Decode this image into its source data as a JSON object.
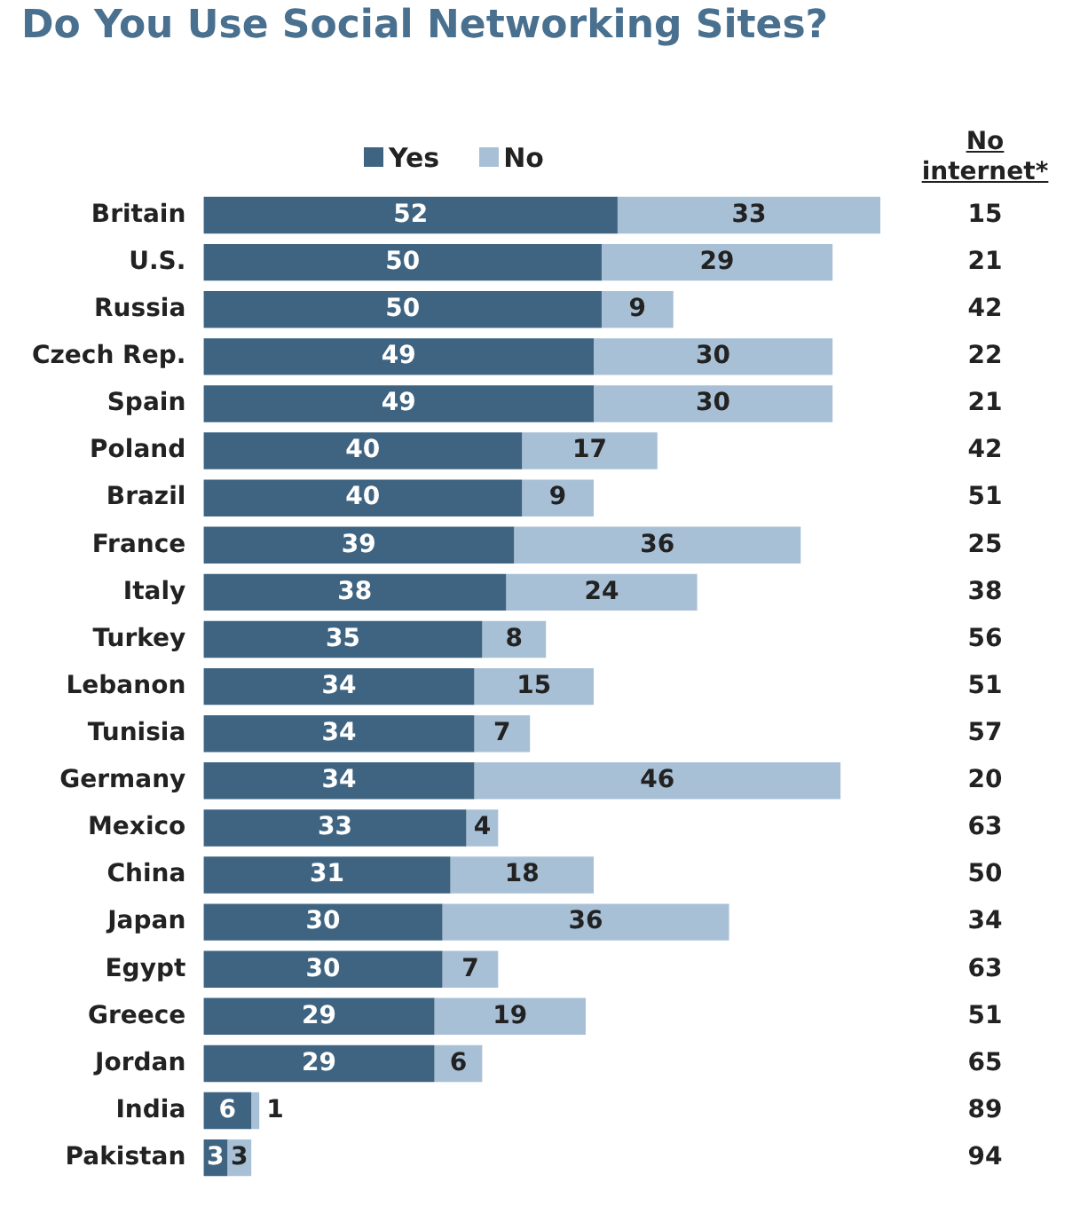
{
  "chart_data": {
    "type": "bar",
    "orientation": "horizontal",
    "stacked": true,
    "title": "Do You Use Social Networking Sites?",
    "categories": [
      "Britain",
      "U.S.",
      "Russia",
      "Czech Rep.",
      "Spain",
      "Poland",
      "Brazil",
      "France",
      "Italy",
      "Turkey",
      "Lebanon",
      "Tunisia",
      "Germany",
      "Mexico",
      "China",
      "Japan",
      "Egypt",
      "Greece",
      "Jordan",
      "India",
      "Pakistan"
    ],
    "series": [
      {
        "name": "Yes",
        "color": "#3e6482",
        "values": [
          52,
          50,
          50,
          49,
          49,
          40,
          40,
          39,
          38,
          35,
          34,
          34,
          34,
          33,
          31,
          30,
          30,
          29,
          29,
          6,
          3
        ]
      },
      {
        "name": "No",
        "color": "#a8c0d6",
        "values": [
          33,
          29,
          9,
          30,
          30,
          17,
          9,
          36,
          24,
          8,
          15,
          7,
          46,
          4,
          18,
          36,
          7,
          19,
          6,
          1,
          3
        ]
      }
    ],
    "data_labels": true,
    "legend": "top",
    "grid": false,
    "tick_labels": "y",
    "annotations": [
      "No internet*",
      "15",
      "21",
      "42",
      "22",
      "21",
      "42",
      "51",
      "25",
      "38",
      "56",
      "51",
      "57",
      "20",
      "63",
      "50",
      "34",
      "63",
      "51",
      "65",
      "89",
      "94"
    ]
  }
}
